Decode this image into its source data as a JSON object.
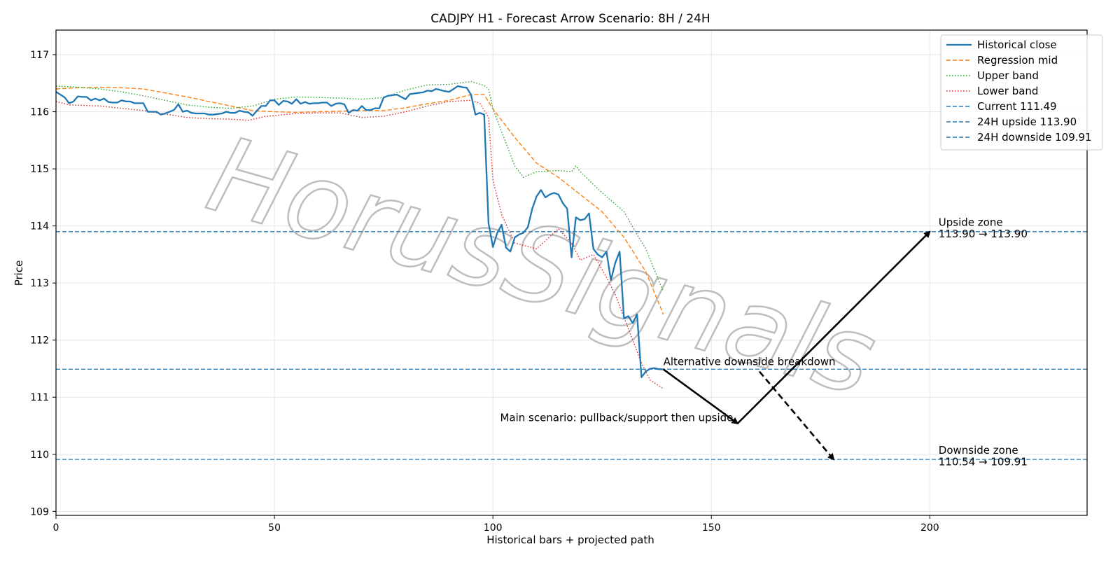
{
  "chart_data": {
    "type": "line",
    "title": "CADJPY H1 - Forecast Arrow Scenario: 8H / 24H",
    "xlabel": "Historical bars + projected path",
    "ylabel": "Price",
    "xlim": [
      0,
      236
    ],
    "ylim": [
      108.93,
      117.43
    ],
    "xticks": [
      0,
      50,
      100,
      150,
      200
    ],
    "yticks": [
      109,
      110,
      111,
      112,
      113,
      114,
      115,
      116,
      117
    ],
    "grid": true,
    "legend_position": "top-right",
    "watermark": "HorusSignals",
    "colors": {
      "historical": "#1f77b4",
      "mid": "#ff7f0e",
      "upper": "#2ca02c",
      "lower": "#d62728",
      "hline": "#1f77b4",
      "arrow": "#000000"
    },
    "series": [
      {
        "name": "Historical close",
        "style": "solid",
        "x": [
          0,
          2,
          3,
          4,
          5,
          6,
          7,
          8,
          9,
          10,
          11,
          12,
          13,
          14,
          15,
          16,
          17,
          18,
          19,
          20,
          21,
          22,
          23,
          24,
          25,
          26,
          27,
          28,
          29,
          30,
          31,
          32,
          33,
          34,
          35,
          36,
          37,
          38,
          39,
          40,
          41,
          42,
          43,
          44,
          45,
          46,
          47,
          48,
          49,
          50,
          51,
          52,
          53,
          54,
          55,
          56,
          57,
          58,
          59,
          60,
          61,
          62,
          63,
          64,
          65,
          66,
          67,
          68,
          69,
          70,
          71,
          72,
          73,
          74,
          75,
          76,
          77,
          78,
          79,
          80,
          81,
          82,
          83,
          84,
          85,
          86,
          87,
          88,
          89,
          90,
          91,
          92,
          93,
          94,
          95,
          96,
          97,
          98,
          99,
          100,
          101,
          102,
          103,
          104,
          105,
          106,
          107,
          108,
          109,
          110,
          111,
          112,
          113,
          114,
          115,
          116,
          117,
          118,
          119,
          120,
          121,
          122,
          123,
          124,
          125,
          126,
          127,
          128,
          129,
          130,
          131,
          132,
          133,
          134,
          135,
          136,
          137,
          138,
          139
        ],
        "y": [
          116.35,
          116.25,
          116.15,
          116.18,
          116.27,
          116.26,
          116.26,
          116.2,
          116.23,
          116.2,
          116.23,
          116.17,
          116.16,
          116.16,
          116.2,
          116.18,
          116.18,
          116.15,
          116.15,
          116.15,
          116.0,
          116.0,
          116.0,
          115.95,
          115.97,
          116.0,
          116.03,
          116.13,
          116.0,
          116.02,
          115.98,
          115.97,
          115.97,
          115.97,
          115.95,
          115.95,
          115.96,
          115.97,
          116.0,
          115.98,
          115.98,
          116.02,
          116.0,
          115.99,
          115.93,
          116.02,
          116.1,
          116.1,
          116.2,
          116.2,
          116.12,
          116.19,
          116.18,
          116.14,
          116.22,
          116.14,
          116.17,
          116.14,
          116.15,
          116.15,
          116.16,
          116.16,
          116.1,
          116.14,
          116.15,
          116.13,
          115.98,
          116.03,
          116.02,
          116.1,
          116.03,
          116.03,
          116.06,
          116.06,
          116.25,
          116.28,
          116.29,
          116.3,
          116.26,
          116.22,
          116.31,
          116.32,
          116.33,
          116.34,
          116.37,
          116.36,
          116.4,
          116.38,
          116.36,
          116.35,
          116.4,
          116.45,
          116.43,
          116.42,
          116.3,
          115.95,
          115.98,
          115.95,
          114.05,
          113.63,
          113.88,
          114.02,
          113.62,
          113.55,
          113.8,
          113.85,
          113.88,
          113.98,
          114.3,
          114.52,
          114.63,
          114.5,
          114.55,
          114.58,
          114.55,
          114.4,
          114.3,
          113.45,
          114.15,
          114.1,
          114.12,
          114.22,
          113.6,
          113.5,
          113.45,
          113.55,
          113.05,
          113.35,
          113.55,
          112.38,
          112.42,
          112.3,
          112.45,
          111.35,
          111.45,
          111.5,
          111.51,
          111.49,
          111.49
        ]
      },
      {
        "name": "Regression mid",
        "style": "dashed",
        "x": [
          0,
          5,
          10,
          15,
          20,
          25,
          30,
          35,
          40,
          45,
          50,
          55,
          60,
          65,
          70,
          75,
          80,
          85,
          90,
          95,
          98,
          100,
          105,
          110,
          115,
          120,
          125,
          130,
          135,
          139
        ],
        "y": [
          116.4,
          116.42,
          116.43,
          116.42,
          116.4,
          116.33,
          116.26,
          116.18,
          116.1,
          116.02,
          116.0,
          115.99,
          116.0,
          116.01,
          116.02,
          116.02,
          116.07,
          116.14,
          116.2,
          116.3,
          116.3,
          116.05,
          115.55,
          115.1,
          114.85,
          114.55,
          114.25,
          113.8,
          113.2,
          112.45
        ]
      },
      {
        "name": "Upper band",
        "style": "dotted",
        "x": [
          0,
          5,
          10,
          15,
          20,
          25,
          30,
          35,
          40,
          45,
          50,
          55,
          60,
          65,
          70,
          75,
          80,
          85,
          90,
          95,
          98,
          99,
          100,
          105,
          107,
          110,
          115,
          118,
          119,
          120,
          125,
          130,
          133,
          135,
          139
        ],
        "y": [
          116.45,
          116.43,
          116.4,
          116.35,
          116.28,
          116.2,
          116.12,
          116.08,
          116.06,
          116.1,
          116.22,
          116.26,
          116.25,
          116.24,
          116.22,
          116.25,
          116.38,
          116.47,
          116.48,
          116.53,
          116.46,
          116.4,
          116.05,
          115.05,
          114.85,
          114.95,
          114.97,
          114.95,
          115.05,
          114.95,
          114.58,
          114.25,
          113.85,
          113.6,
          112.85
        ]
      },
      {
        "name": "Lower band",
        "style": "dotted",
        "x": [
          0,
          3,
          10,
          20,
          30,
          35,
          40,
          44,
          48,
          55,
          60,
          65,
          70,
          75,
          80,
          85,
          90,
          95,
          97,
          99,
          100,
          102,
          105,
          110,
          115,
          118,
          120,
          123,
          126,
          128,
          131,
          134,
          136,
          139
        ],
        "y": [
          116.18,
          116.12,
          116.1,
          116.02,
          115.9,
          115.88,
          115.87,
          115.85,
          115.92,
          115.97,
          115.98,
          115.98,
          115.9,
          115.92,
          116.0,
          116.1,
          116.18,
          116.2,
          116.15,
          115.9,
          114.8,
          114.2,
          113.7,
          113.6,
          113.95,
          113.7,
          113.4,
          113.5,
          113.1,
          112.8,
          112.2,
          111.6,
          111.3,
          111.15
        ]
      }
    ],
    "hlines": [
      {
        "name": "Current 111.49",
        "y": 111.49
      },
      {
        "name": "24H upside 113.90",
        "y": 113.9
      },
      {
        "name": "24H downside 109.91",
        "y": 109.91
      }
    ],
    "arrows": [
      {
        "from": [
          139,
          111.49
        ],
        "to": [
          156,
          110.54
        ],
        "style": "solid"
      },
      {
        "from": [
          156,
          110.54
        ],
        "to": [
          200,
          113.9
        ],
        "style": "solid"
      },
      {
        "from": [
          161,
          111.45
        ],
        "to": [
          178,
          109.91
        ],
        "style": "dashed"
      }
    ],
    "annotations": [
      {
        "id": "alt",
        "text": "Alternative downside breakdown",
        "x": 139,
        "y": 111.56,
        "anchor": "start"
      },
      {
        "id": "main",
        "text": "Main scenario: pullback/support then upside",
        "x": 155,
        "y": 110.58,
        "anchor": "end"
      },
      {
        "id": "upzone-1",
        "text": "Upside zone",
        "x": 202,
        "y": 114.0,
        "anchor": "start"
      },
      {
        "id": "upzone-2",
        "text": "113.90 → 113.90",
        "x": 202,
        "y": 113.8,
        "anchor": "start"
      },
      {
        "id": "downzone-1",
        "text": "Downside zone",
        "x": 202,
        "y": 110.01,
        "anchor": "start"
      },
      {
        "id": "downzone-2",
        "text": "110.54 → 109.91",
        "x": 202,
        "y": 109.81,
        "anchor": "start"
      }
    ]
  }
}
